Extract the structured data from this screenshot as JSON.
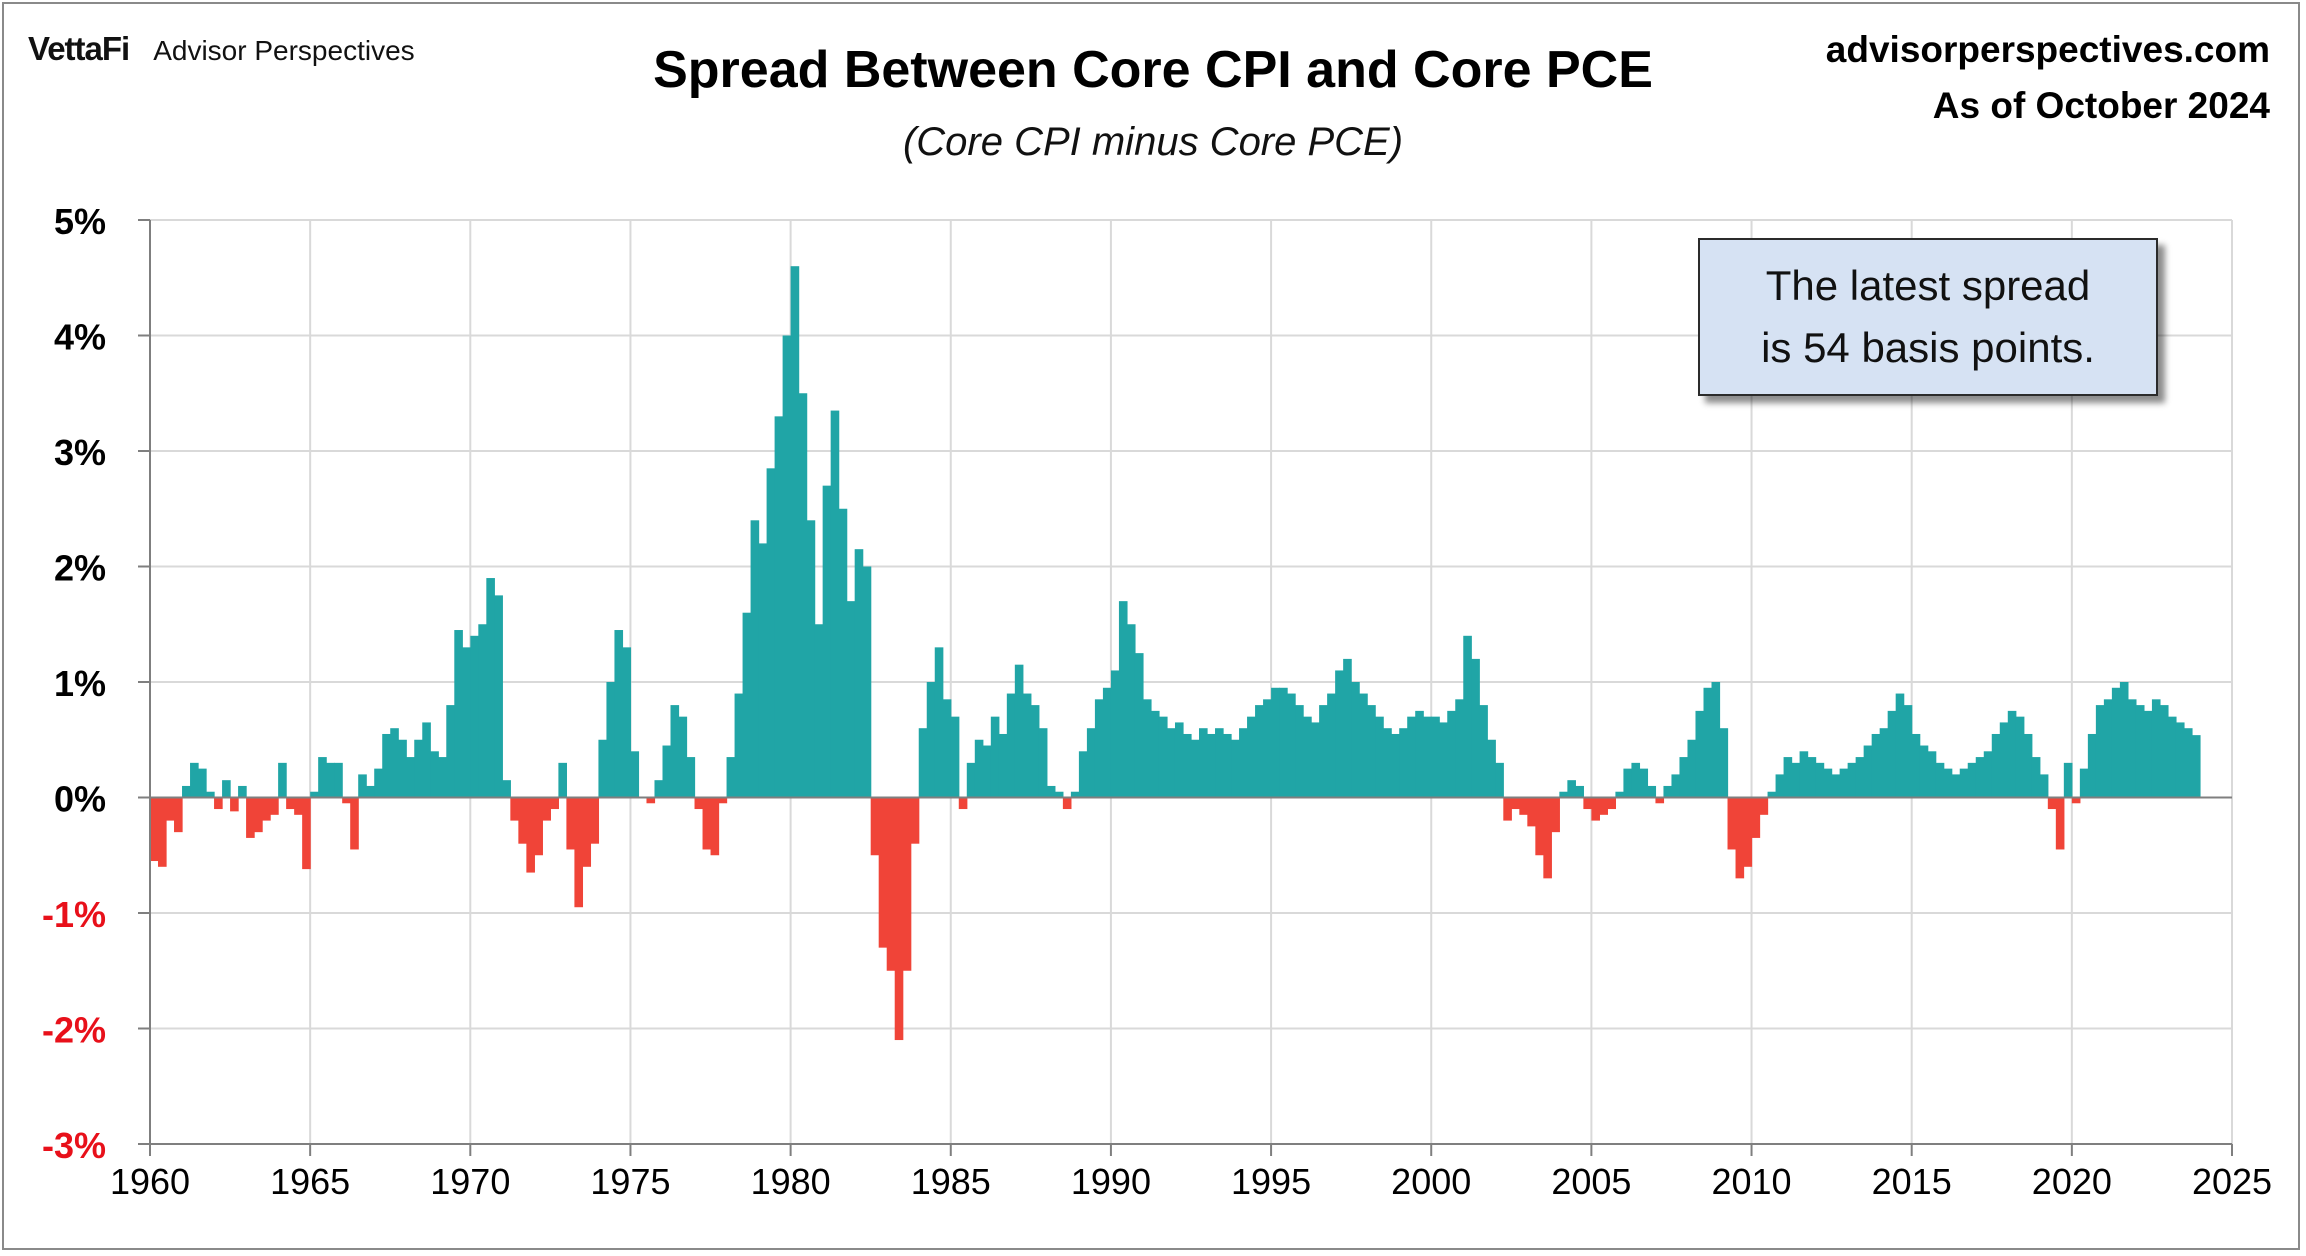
{
  "header": {
    "logo_mark": "VettaFi",
    "logo_text": "Advisor Perspectives",
    "site": "advisorperspectives.com",
    "as_of": "As of October 2024"
  },
  "annotation": {
    "line1": "The latest spread",
    "line2": "is 54 basis points."
  },
  "colors": {
    "positive": "#20a5a6",
    "negative": "#f04438",
    "negative_label": "#e8101a",
    "grid": "#d9d9d9",
    "axis": "#7f7f7f"
  },
  "chart_data": {
    "type": "bar",
    "title": "Spread Between Core CPI and Core PCE",
    "subtitle": "(Core CPI minus Core PCE)",
    "xlabel": "",
    "ylabel": "",
    "x_unit": "year",
    "xlim": [
      1960,
      2025
    ],
    "ylim": [
      -3,
      5
    ],
    "x_ticks": [
      "1960",
      "1965",
      "1970",
      "1975",
      "1980",
      "1985",
      "1990",
      "1995",
      "2000",
      "2005",
      "2010",
      "2015",
      "2020",
      "2025"
    ],
    "y_ticks": [
      "5%",
      "4%",
      "3%",
      "2%",
      "1%",
      "0%",
      "-1%",
      "-2%",
      "-3%"
    ],
    "grid": true,
    "legend": "none",
    "series": [
      {
        "values_note": "",
        "points": [
          [
            1960.0,
            -0.55
          ],
          [
            1960.25,
            -0.6
          ],
          [
            1960.5,
            -0.2
          ],
          [
            1960.75,
            -0.3
          ],
          [
            1961.0,
            0.1
          ],
          [
            1961.25,
            0.3
          ],
          [
            1961.5,
            0.25
          ],
          [
            1961.75,
            0.05
          ],
          [
            1962.0,
            -0.1
          ],
          [
            1962.25,
            0.15
          ],
          [
            1962.5,
            -0.12
          ],
          [
            1962.75,
            0.1
          ],
          [
            1963.0,
            -0.35
          ],
          [
            1963.25,
            -0.3
          ],
          [
            1963.5,
            -0.2
          ],
          [
            1963.75,
            -0.15
          ],
          [
            1964.0,
            0.3
          ],
          [
            1964.25,
            -0.1
          ],
          [
            1964.5,
            -0.15
          ],
          [
            1964.75,
            -0.62
          ],
          [
            1965.0,
            0.05
          ],
          [
            1965.25,
            0.35
          ],
          [
            1965.5,
            0.3
          ],
          [
            1965.75,
            0.3
          ],
          [
            1966.0,
            -0.05
          ],
          [
            1966.25,
            -0.45
          ],
          [
            1966.5,
            0.2
          ],
          [
            1966.75,
            0.1
          ],
          [
            1967.0,
            0.25
          ],
          [
            1967.25,
            0.55
          ],
          [
            1967.5,
            0.6
          ],
          [
            1967.75,
            0.5
          ],
          [
            1968.0,
            0.35
          ],
          [
            1968.25,
            0.5
          ],
          [
            1968.5,
            0.65
          ],
          [
            1968.75,
            0.4
          ],
          [
            1969.0,
            0.35
          ],
          [
            1969.25,
            0.8
          ],
          [
            1969.5,
            1.45
          ],
          [
            1969.75,
            1.3
          ],
          [
            1970.0,
            1.4
          ],
          [
            1970.25,
            1.5
          ],
          [
            1970.5,
            1.9
          ],
          [
            1970.75,
            1.75
          ],
          [
            1971.0,
            0.15
          ],
          [
            1971.25,
            -0.2
          ],
          [
            1971.5,
            -0.4
          ],
          [
            1971.75,
            -0.65
          ],
          [
            1972.0,
            -0.5
          ],
          [
            1972.25,
            -0.2
          ],
          [
            1972.5,
            -0.1
          ],
          [
            1972.75,
            0.3
          ],
          [
            1973.0,
            -0.45
          ],
          [
            1973.25,
            -0.95
          ],
          [
            1973.5,
            -0.6
          ],
          [
            1973.75,
            -0.4
          ],
          [
            1974.0,
            0.5
          ],
          [
            1974.25,
            1.0
          ],
          [
            1974.5,
            1.45
          ],
          [
            1974.75,
            1.3
          ],
          [
            1975.0,
            0.4
          ],
          [
            1975.25,
            0.0
          ],
          [
            1975.5,
            -0.05
          ],
          [
            1975.75,
            0.15
          ],
          [
            1976.0,
            0.45
          ],
          [
            1976.25,
            0.8
          ],
          [
            1976.5,
            0.7
          ],
          [
            1976.75,
            0.35
          ],
          [
            1977.0,
            -0.1
          ],
          [
            1977.25,
            -0.45
          ],
          [
            1977.5,
            -0.5
          ],
          [
            1977.75,
            -0.05
          ],
          [
            1978.0,
            0.35
          ],
          [
            1978.25,
            0.9
          ],
          [
            1978.5,
            1.6
          ],
          [
            1978.75,
            2.4
          ],
          [
            1979.0,
            2.2
          ],
          [
            1979.25,
            2.85
          ],
          [
            1979.5,
            3.3
          ],
          [
            1979.75,
            4.0
          ],
          [
            1980.0,
            4.6
          ],
          [
            1980.25,
            3.5
          ],
          [
            1980.5,
            2.4
          ],
          [
            1980.75,
            1.5
          ],
          [
            1981.0,
            2.7
          ],
          [
            1981.25,
            3.35
          ],
          [
            1981.5,
            2.5
          ],
          [
            1981.75,
            1.7
          ],
          [
            1982.0,
            2.15
          ],
          [
            1982.25,
            2.0
          ],
          [
            1982.5,
            -0.5
          ],
          [
            1982.75,
            -1.3
          ],
          [
            1983.0,
            -1.5
          ],
          [
            1983.25,
            -2.1
          ],
          [
            1983.5,
            -1.5
          ],
          [
            1983.75,
            -0.4
          ],
          [
            1984.0,
            0.6
          ],
          [
            1984.25,
            1.0
          ],
          [
            1984.5,
            1.3
          ],
          [
            1984.75,
            0.85
          ],
          [
            1985.0,
            0.7
          ],
          [
            1985.25,
            -0.1
          ],
          [
            1985.5,
            0.3
          ],
          [
            1985.75,
            0.5
          ],
          [
            1986.0,
            0.45
          ],
          [
            1986.25,
            0.7
          ],
          [
            1986.5,
            0.55
          ],
          [
            1986.75,
            0.9
          ],
          [
            1987.0,
            1.15
          ],
          [
            1987.25,
            0.9
          ],
          [
            1987.5,
            0.8
          ],
          [
            1987.75,
            0.6
          ],
          [
            1988.0,
            0.1
          ],
          [
            1988.25,
            0.05
          ],
          [
            1988.5,
            -0.1
          ],
          [
            1988.75,
            0.05
          ],
          [
            1989.0,
            0.4
          ],
          [
            1989.25,
            0.6
          ],
          [
            1989.5,
            0.85
          ],
          [
            1989.75,
            0.95
          ],
          [
            1990.0,
            1.1
          ],
          [
            1990.25,
            1.7
          ],
          [
            1990.5,
            1.5
          ],
          [
            1990.75,
            1.25
          ],
          [
            1991.0,
            0.85
          ],
          [
            1991.25,
            0.75
          ],
          [
            1991.5,
            0.7
          ],
          [
            1991.75,
            0.6
          ],
          [
            1992.0,
            0.65
          ],
          [
            1992.25,
            0.55
          ],
          [
            1992.5,
            0.5
          ],
          [
            1992.75,
            0.6
          ],
          [
            1993.0,
            0.55
          ],
          [
            1993.25,
            0.6
          ],
          [
            1993.5,
            0.55
          ],
          [
            1993.75,
            0.5
          ],
          [
            1994.0,
            0.6
          ],
          [
            1994.25,
            0.7
          ],
          [
            1994.5,
            0.8
          ],
          [
            1994.75,
            0.85
          ],
          [
            1995.0,
            0.95
          ],
          [
            1995.25,
            0.95
          ],
          [
            1995.5,
            0.9
          ],
          [
            1995.75,
            0.8
          ],
          [
            1996.0,
            0.7
          ],
          [
            1996.25,
            0.65
          ],
          [
            1996.5,
            0.8
          ],
          [
            1996.75,
            0.9
          ],
          [
            1997.0,
            1.1
          ],
          [
            1997.25,
            1.2
          ],
          [
            1997.5,
            1.0
          ],
          [
            1997.75,
            0.9
          ],
          [
            1998.0,
            0.8
          ],
          [
            1998.25,
            0.7
          ],
          [
            1998.5,
            0.6
          ],
          [
            1998.75,
            0.55
          ],
          [
            1999.0,
            0.6
          ],
          [
            1999.25,
            0.7
          ],
          [
            1999.5,
            0.75
          ],
          [
            1999.75,
            0.7
          ],
          [
            2000.0,
            0.7
          ],
          [
            2000.25,
            0.65
          ],
          [
            2000.5,
            0.75
          ],
          [
            2000.75,
            0.85
          ],
          [
            2001.0,
            1.4
          ],
          [
            2001.25,
            1.2
          ],
          [
            2001.5,
            0.8
          ],
          [
            2001.75,
            0.5
          ],
          [
            2002.0,
            0.3
          ],
          [
            2002.25,
            -0.2
          ],
          [
            2002.5,
            -0.1
          ],
          [
            2002.75,
            -0.15
          ],
          [
            2003.0,
            -0.25
          ],
          [
            2003.25,
            -0.5
          ],
          [
            2003.5,
            -0.7
          ],
          [
            2003.75,
            -0.3
          ],
          [
            2004.0,
            0.05
          ],
          [
            2004.25,
            0.15
          ],
          [
            2004.5,
            0.1
          ],
          [
            2004.75,
            -0.1
          ],
          [
            2005.0,
            -0.2
          ],
          [
            2005.25,
            -0.15
          ],
          [
            2005.5,
            -0.1
          ],
          [
            2005.75,
            0.05
          ],
          [
            2006.0,
            0.25
          ],
          [
            2006.25,
            0.3
          ],
          [
            2006.5,
            0.25
          ],
          [
            2006.75,
            0.1
          ],
          [
            2007.0,
            -0.05
          ],
          [
            2007.25,
            0.1
          ],
          [
            2007.5,
            0.2
          ],
          [
            2007.75,
            0.35
          ],
          [
            2008.0,
            0.5
          ],
          [
            2008.25,
            0.75
          ],
          [
            2008.5,
            0.95
          ],
          [
            2008.75,
            1.0
          ],
          [
            2009.0,
            0.6
          ],
          [
            2009.25,
            -0.45
          ],
          [
            2009.5,
            -0.7
          ],
          [
            2009.75,
            -0.6
          ],
          [
            2010.0,
            -0.35
          ],
          [
            2010.25,
            -0.15
          ],
          [
            2010.5,
            0.05
          ],
          [
            2010.75,
            0.2
          ],
          [
            2011.0,
            0.35
          ],
          [
            2011.25,
            0.3
          ],
          [
            2011.5,
            0.4
          ],
          [
            2011.75,
            0.35
          ],
          [
            2012.0,
            0.3
          ],
          [
            2012.25,
            0.25
          ],
          [
            2012.5,
            0.2
          ],
          [
            2012.75,
            0.25
          ],
          [
            2013.0,
            0.3
          ],
          [
            2013.25,
            0.35
          ],
          [
            2013.5,
            0.45
          ],
          [
            2013.75,
            0.55
          ],
          [
            2014.0,
            0.6
          ],
          [
            2014.25,
            0.75
          ],
          [
            2014.5,
            0.9
          ],
          [
            2014.75,
            0.8
          ],
          [
            2015.0,
            0.55
          ],
          [
            2015.25,
            0.45
          ],
          [
            2015.5,
            0.4
          ],
          [
            2015.75,
            0.3
          ],
          [
            2016.0,
            0.25
          ],
          [
            2016.25,
            0.2
          ],
          [
            2016.5,
            0.25
          ],
          [
            2016.75,
            0.3
          ],
          [
            2017.0,
            0.35
          ],
          [
            2017.25,
            0.4
          ],
          [
            2017.5,
            0.55
          ],
          [
            2017.75,
            0.65
          ],
          [
            2018.0,
            0.75
          ],
          [
            2018.25,
            0.7
          ],
          [
            2018.5,
            0.55
          ],
          [
            2018.75,
            0.35
          ],
          [
            2019.0,
            0.2
          ],
          [
            2019.25,
            -0.1
          ],
          [
            2019.5,
            -0.45
          ],
          [
            2019.75,
            0.3
          ],
          [
            2020.0,
            -0.05
          ],
          [
            2020.25,
            0.25
          ],
          [
            2020.5,
            0.55
          ],
          [
            2020.75,
            0.8
          ],
          [
            2021.0,
            0.85
          ],
          [
            2021.25,
            0.95
          ],
          [
            2021.5,
            1.0
          ],
          [
            2021.75,
            0.85
          ],
          [
            2022.0,
            0.8
          ],
          [
            2022.25,
            0.75
          ],
          [
            2022.5,
            0.85
          ],
          [
            2022.75,
            0.8
          ],
          [
            2023.0,
            0.7
          ],
          [
            2023.25,
            0.65
          ],
          [
            2023.5,
            0.6
          ],
          [
            2023.75,
            0.54
          ]
        ]
      }
    ]
  }
}
